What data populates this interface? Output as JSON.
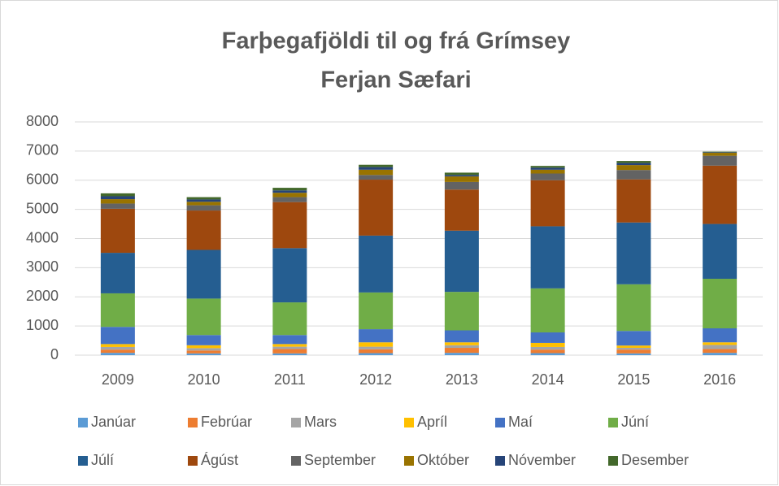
{
  "chart_data": {
    "type": "stacked_bar",
    "title": [
      "Farþegafjöldi til og frá Grímsey",
      "Ferjan Sæfari"
    ],
    "categories": [
      "2009",
      "2010",
      "2011",
      "2012",
      "2013",
      "2014",
      "2015",
      "2016"
    ],
    "series": [
      {
        "name": "Janúar",
        "color": "#5b9bd5",
        "values": [
          80,
          60,
          60,
          70,
          80,
          70,
          60,
          80
        ]
      },
      {
        "name": "Febrúar",
        "color": "#ed7d31",
        "values": [
          110,
          100,
          150,
          130,
          170,
          120,
          130,
          130
        ]
      },
      {
        "name": "Mars",
        "color": "#a5a5a5",
        "values": [
          90,
          80,
          80,
          90,
          90,
          90,
          60,
          140
        ]
      },
      {
        "name": "Apríl",
        "color": "#ffc000",
        "values": [
          100,
          100,
          90,
          150,
          100,
          140,
          80,
          90
        ]
      },
      {
        "name": "Maí",
        "color": "#4472c4",
        "values": [
          590,
          350,
          310,
          450,
          410,
          360,
          500,
          480
        ]
      },
      {
        "name": "Júní",
        "color": "#70ad47",
        "values": [
          1150,
          1250,
          1120,
          1260,
          1320,
          1510,
          1600,
          1700
        ]
      },
      {
        "name": "Júlí",
        "color": "#255e91",
        "values": [
          1390,
          1670,
          1860,
          1950,
          2100,
          2130,
          2120,
          1880
        ]
      },
      {
        "name": "Ágúst",
        "color": "#9e480e",
        "values": [
          1510,
          1350,
          1580,
          1920,
          1410,
          1580,
          1480,
          2000
        ]
      },
      {
        "name": "September",
        "color": "#636363",
        "values": [
          180,
          180,
          170,
          160,
          260,
          230,
          320,
          340
        ]
      },
      {
        "name": "Október",
        "color": "#997300",
        "values": [
          150,
          120,
          150,
          180,
          190,
          130,
          170,
          100
        ]
      },
      {
        "name": "Nóvember",
        "color": "#264478",
        "values": [
          100,
          80,
          80,
          90,
          50,
          70,
          70,
          20
        ]
      },
      {
        "name": "Desember",
        "color": "#43682b",
        "values": [
          100,
          80,
          90,
          80,
          80,
          60,
          70,
          20
        ]
      }
    ],
    "ylim": [
      0,
      8000
    ],
    "yticks": [
      0,
      1000,
      2000,
      3000,
      4000,
      5000,
      6000,
      7000,
      8000
    ],
    "grid": true,
    "legend": "bottom"
  }
}
